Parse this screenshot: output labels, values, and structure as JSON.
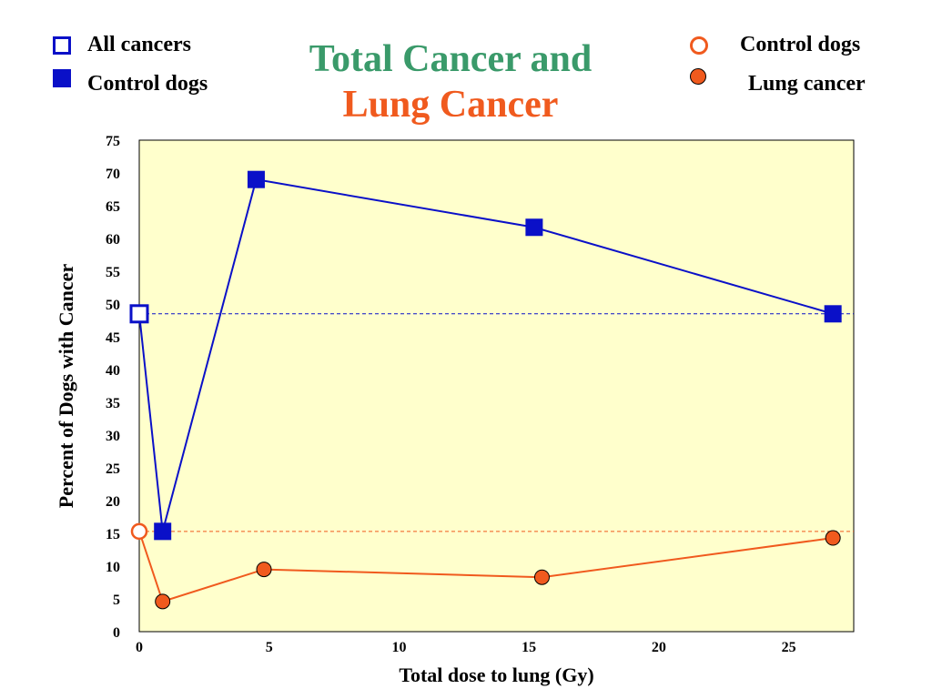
{
  "title": {
    "line1": "Total Cancer and",
    "line2": "Lung Cancer"
  },
  "colors": {
    "title_line1": "#3a9a6a",
    "title_line2": "#f05a1e",
    "blue_series": "#0a10c8",
    "orange_series": "#f05a1e",
    "plot_background": "#ffffcc"
  },
  "legend": {
    "left": [
      {
        "label": "All cancers",
        "marker": "hollow-square-icon"
      },
      {
        "label": "Control dogs",
        "marker": "filled-square-icon"
      }
    ],
    "right": [
      {
        "label": "Control dogs",
        "marker": "hollow-circle-icon"
      },
      {
        "label": "Lung cancer",
        "marker": "filled-circle-icon"
      }
    ]
  },
  "chart_data": {
    "type": "line",
    "title": "Total Cancer and Lung Cancer",
    "xlabel": "Total dose to lung (Gy)",
    "ylabel": "Percent of  Dogs with Cancer",
    "xlim": [
      0,
      27.5
    ],
    "ylim": [
      0,
      75
    ],
    "xticks": [
      0,
      5,
      10,
      15,
      20,
      25
    ],
    "yticks": [
      0,
      5,
      10,
      15,
      20,
      25,
      30,
      35,
      40,
      45,
      50,
      55,
      60,
      65,
      70,
      75
    ],
    "grid": false,
    "series": [
      {
        "name": "All cancers",
        "color": "#0a10c8",
        "marker": "square",
        "x": [
          0,
          0.9,
          4.5,
          15.2,
          26.7
        ],
        "y": [
          48.5,
          15.3,
          69.0,
          61.7,
          48.5
        ],
        "control_point_hollow": true,
        "reference_line": 48.5
      },
      {
        "name": "Lung cancer",
        "color": "#f05a1e",
        "marker": "circle",
        "x": [
          0,
          0.9,
          4.8,
          15.5,
          26.7
        ],
        "y": [
          15.3,
          4.6,
          9.5,
          8.3,
          14.3
        ],
        "control_point_hollow": true,
        "reference_line": 15.3
      }
    ]
  }
}
